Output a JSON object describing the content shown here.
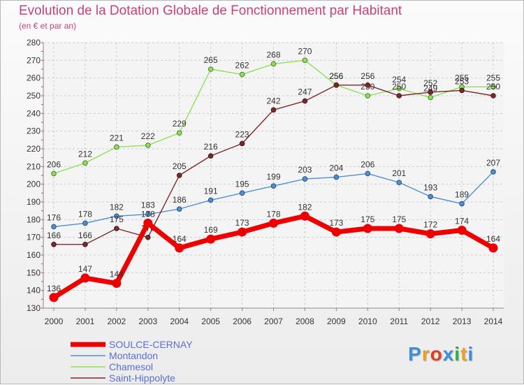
{
  "header": {
    "title": "Evolution de la Dotation Globale de Fonctionnement par Habitant",
    "subtitle": "(en € et par an)"
  },
  "brand": {
    "logo_text": "Proxiti"
  },
  "chart_data": {
    "type": "line",
    "title": "Evolution de la Dotation Globale de Fonctionnement par Habitant",
    "subtitle": "(en € et par an)",
    "xlabel": "",
    "ylabel": "",
    "x": [
      2000,
      2001,
      2002,
      2003,
      2004,
      2005,
      2006,
      2007,
      2008,
      2009,
      2010,
      2011,
      2012,
      2013,
      2014
    ],
    "ylim": [
      130,
      280
    ],
    "yticks": [
      130,
      140,
      150,
      160,
      170,
      180,
      190,
      200,
      210,
      220,
      230,
      240,
      250,
      260,
      270,
      280
    ],
    "grid": true,
    "legend_position": "bottom-left",
    "series": [
      {
        "name": "SOULCE-CERNAY",
        "color": "#ee0000",
        "emphasis": true,
        "values": [
          136,
          147,
          144,
          178,
          164,
          169,
          173,
          178,
          182,
          173,
          175,
          175,
          172,
          174,
          164
        ]
      },
      {
        "name": "Montandon",
        "color": "#4f8fd6",
        "emphasis": false,
        "values": [
          176,
          178,
          182,
          183,
          186,
          191,
          195,
          199,
          203,
          204,
          206,
          201,
          193,
          189,
          207
        ]
      },
      {
        "name": "Chamesol",
        "color": "#8ee05a",
        "emphasis": false,
        "values": [
          206,
          212,
          221,
          222,
          229,
          265,
          262,
          268,
          270,
          256,
          250,
          254,
          249,
          255,
          255
        ]
      },
      {
        "name": "Saint-Hippolyte",
        "color": "#7a2a2a",
        "emphasis": false,
        "values": [
          166,
          166,
          175,
          170,
          205,
          216,
          223,
          242,
          247,
          256,
          256,
          250,
          252,
          253,
          250
        ]
      }
    ]
  }
}
